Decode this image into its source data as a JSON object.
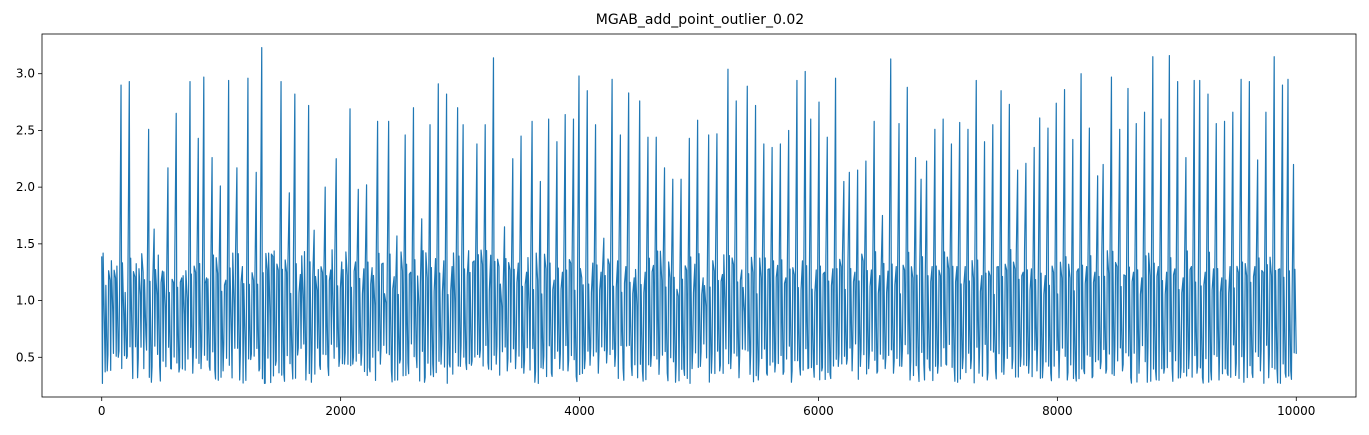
{
  "chart_data": {
    "type": "line",
    "title": "MGAB_add_point_outlier_0.02",
    "xlabel": "",
    "ylabel": "",
    "xlim": [
      -500,
      10500
    ],
    "ylim": [
      0.15,
      3.35
    ],
    "xticks": [
      0,
      2000,
      4000,
      6000,
      8000,
      10000
    ],
    "xtick_labels": [
      "0",
      "2000",
      "4000",
      "6000",
      "8000",
      "10000"
    ],
    "yticks": [
      0.5,
      1.0,
      1.5,
      2.0,
      2.5,
      3.0
    ],
    "ytick_labels": [
      "0.5",
      "1.0",
      "1.5",
      "2.0",
      "2.5",
      "3.0"
    ],
    "grid": false,
    "series": [
      {
        "name": "",
        "color": "#1f77b4",
        "x_start": 0,
        "x_end": 10000,
        "period": 17.5,
        "low_range": [
          0.27,
          0.62
        ],
        "high_range": [
          1.05,
          1.45
        ],
        "values": [
          1.39,
          0.75,
          0.38,
          1.18,
          0.9,
          1.2,
          0.5,
          2.9,
          0.86,
          0.49,
          2.93,
          0.62,
          1.21,
          0.32,
          1.05,
          1.25,
          0.7,
          2.51,
          0.28,
          1.63,
          1.05,
          0.42,
          1.26,
          0.95,
          2.17,
          0.4,
          1.16,
          2.65,
          0.37,
          1.2,
          0.88,
          1.02,
          2.93,
          0.36,
          1.25,
          2.43,
          0.4,
          2.97,
          1.2,
          0.42,
          2.26,
          0.39,
          1.24,
          2.01,
          0.38,
          1.18,
          2.94,
          0.7,
          0.94,
          2.17,
          0.3,
          1.3,
          0.6,
          2.96,
          0.48,
          1.18,
          2.13,
          0.38,
          3.23,
          0.27,
          1.27,
          0.86,
          1.39,
          0.43,
          1.27,
          2.93,
          0.36,
          1.25,
          1.95,
          0.44,
          2.82,
          0.52,
          1.23,
          0.98,
          0.3,
          2.72,
          0.28,
          1.62,
          1.09,
          0.43,
          1.25,
          2.0,
          0.42,
          1.27,
          0.85,
          2.25,
          0.42,
          1.34,
          0.44,
          1.22,
          2.69,
          0.44,
          1.34,
          1.98,
          0.43,
          1.28,
          2.02,
          0.41,
          1.29,
          0.96,
          2.58,
          0.44,
          1.33,
          0.98,
          2.58,
          0.38,
          1.21,
          1.57,
          0.45,
          1.26,
          2.46,
          0.45,
          1.25,
          2.7,
          0.52,
          0.94,
          1.72,
          0.28,
          1.2,
          2.55,
          0.44,
          1.37,
          2.91,
          0.44,
          1.35,
          2.82,
          0.44,
          1.3,
          0.98,
          2.7,
          0.42,
          2.55,
          0.45,
          1.44,
          0.43,
          1.35,
          2.38,
          0.5,
          1.32,
          2.55,
          0.45,
          1.4,
          3.14,
          0.44,
          1.3,
          0.95,
          1.65,
          0.38,
          1.27,
          2.25,
          0.4,
          1.33,
          2.45,
          0.36,
          1.25,
          0.9,
          2.58,
          0.28,
          1.18,
          2.05,
          0.4,
          1.28,
          2.6,
          0.36,
          1.18,
          2.4,
          0.4,
          1.25,
          2.64,
          0.38,
          1.33,
          2.6,
          0.33,
          2.98,
          1.2,
          0.4,
          2.85,
          0.43,
          1.33,
          2.55,
          0.36,
          1.25,
          1.55,
          0.45,
          1.32,
          2.95,
          0.42,
          1.35,
          2.46,
          0.4,
          1.3,
          2.83,
          0.42,
          1.2,
          0.95,
          2.76,
          0.38,
          1.25,
          2.44,
          0.42,
          1.31,
          2.44,
          0.35,
          1.18,
          2.17,
          0.36,
          1.2,
          2.07,
          0.28,
          1.04,
          2.07,
          0.4,
          1.27,
          2.43,
          0.4,
          1.32,
          2.59,
          0.42,
          1.2,
          0.95,
          2.46,
          0.36,
          1.26,
          2.47,
          0.38,
          1.23,
          0.92,
          3.04,
          0.4,
          1.32,
          2.76,
          0.32,
          1.27,
          0.9,
          2.89,
          0.35,
          1.25,
          2.72,
          0.3,
          1.2,
          2.38,
          0.36,
          1.28,
          2.35,
          0.37,
          1.31,
          2.38,
          0.35,
          1.2,
          2.5,
          0.28,
          1.23,
          2.94,
          0.42,
          1.35,
          3.02,
          0.4,
          2.6,
          0.42,
          1.27,
          2.75,
          0.38,
          1.25,
          2.44,
          0.35,
          1.28,
          2.96,
          0.42,
          1.3,
          2.05,
          0.44,
          2.13,
          0.38,
          1.25,
          2.15,
          0.42,
          1.35,
          2.23,
          0.4,
          1.27,
          2.58,
          0.36,
          1.22,
          1.75,
          0.4,
          1.26,
          3.13,
          0.36,
          1.3,
          2.56,
          0.42,
          1.27,
          2.88,
          0.3,
          1.2,
          2.26,
          0.4,
          2.07,
          0.44,
          2.23,
          0.41,
          1.3,
          2.51,
          0.36,
          1.22,
          2.6,
          0.44,
          1.28,
          2.38,
          0.42,
          1.3,
          2.57,
          0.4,
          1.3,
          2.51,
          0.4,
          1.2,
          2.94,
          0.36,
          1.22,
          2.4,
          0.3,
          1.22,
          2.55,
          0.38,
          1.3,
          2.85,
          0.35,
          1.27,
          2.73,
          0.4,
          1.28,
          2.15,
          0.42,
          1.25,
          2.21,
          0.36,
          1.28,
          2.35,
          0.38,
          2.61,
          0.32,
          1.22,
          2.52,
          0.36,
          1.25,
          2.74,
          0.32,
          1.2,
          2.86,
          0.3,
          1.2,
          2.42,
          0.36,
          1.28,
          3.0,
          0.38,
          1.3,
          2.52,
          0.32,
          1.25,
          2.1,
          0.4,
          2.2,
          0.36,
          1.24,
          2.97,
          0.34,
          1.3,
          2.51,
          0.38,
          1.22,
          2.87,
          0.32,
          1.25,
          2.56,
          0.36,
          1.2,
          2.66,
          0.28,
          1.22,
          3.15,
          0.38,
          1.3,
          2.6,
          0.36,
          1.25,
          3.16,
          0.4,
          1.28,
          2.93,
          0.32,
          1.2,
          2.26,
          0.4,
          1.3,
          2.94,
          0.36,
          2.94,
          0.32,
          1.25,
          2.82,
          0.38,
          1.28,
          2.56,
          0.3,
          1.2,
          2.58,
          0.36,
          1.3,
          2.66,
          0.34,
          1.25,
          2.95,
          0.28,
          1.22,
          2.93,
          0.36,
          1.3,
          2.24,
          0.38,
          1.25,
          2.66,
          0.32,
          1.22,
          3.15,
          0.4,
          1.28,
          2.9,
          0.36,
          2.95,
          0.38,
          2.2,
          0.53
        ]
      }
    ]
  }
}
